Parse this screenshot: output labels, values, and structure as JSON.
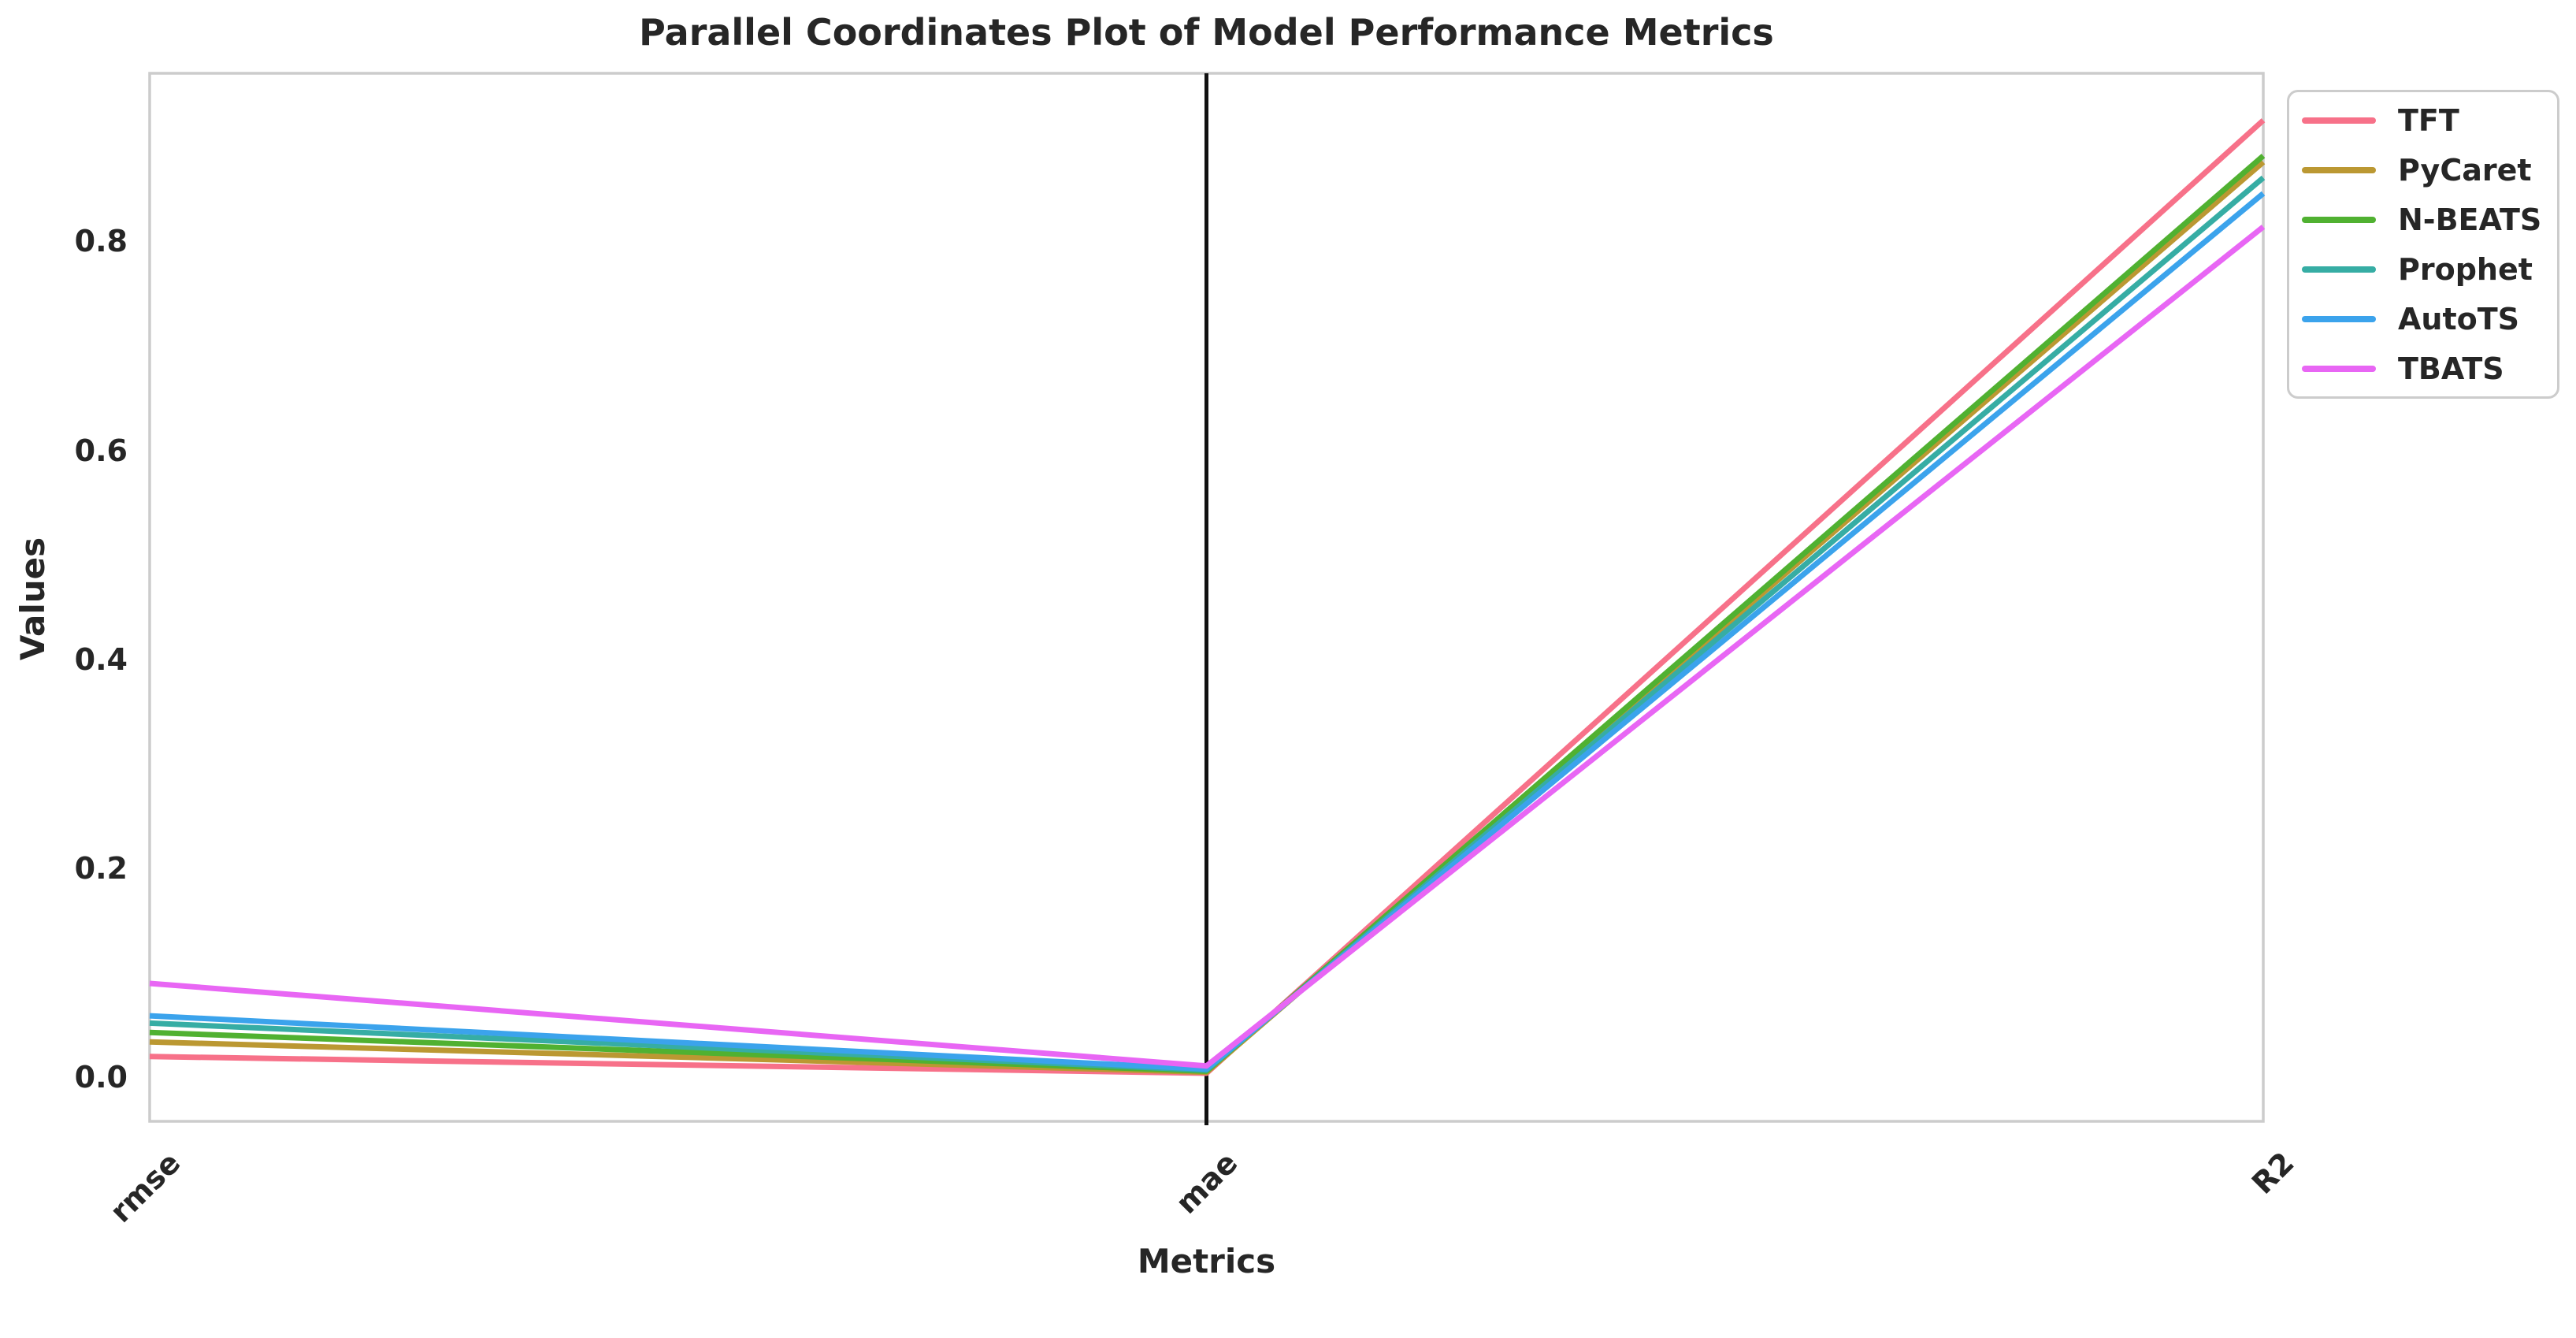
{
  "title": "Parallel Coordinates Plot of Model Performance Metrics",
  "chart_data": {
    "type": "line",
    "variant": "parallel-coordinates",
    "title": "Parallel Coordinates Plot of Model Performance Metrics",
    "xlabel": "Metrics",
    "ylabel": "Values",
    "categories": [
      "rmse",
      "mae",
      "R2"
    ],
    "series": [
      {
        "name": "TFT",
        "color": "#f77189",
        "values": [
          0.02,
          0.004,
          0.916
        ]
      },
      {
        "name": "PyCaret",
        "color": "#bb9832",
        "values": [
          0.034,
          0.005,
          0.876
        ]
      },
      {
        "name": "N-BEATS",
        "color": "#50b131",
        "values": [
          0.043,
          0.006,
          0.882
        ]
      },
      {
        "name": "Prophet",
        "color": "#36ada4",
        "values": [
          0.052,
          0.007,
          0.861
        ]
      },
      {
        "name": "AutoTS",
        "color": "#3ba3ec",
        "values": [
          0.059,
          0.008,
          0.846
        ]
      },
      {
        "name": "TBATS",
        "color": "#e866f4",
        "values": [
          0.09,
          0.011,
          0.814
        ]
      }
    ],
    "yticks": [
      0.0,
      0.2,
      0.4,
      0.6,
      0.8
    ],
    "ytick_labels": [
      "0.0",
      "0.2",
      "0.4",
      "0.6",
      "0.8"
    ],
    "ylim": [
      -0.042,
      0.961
    ],
    "grid": false,
    "legend_position": "upper right outside",
    "axvline_at": "mae",
    "axvline_color": "#111111",
    "spine_color": "#cccccc",
    "text_color": "#262626",
    "background_color": "#ffffff"
  }
}
